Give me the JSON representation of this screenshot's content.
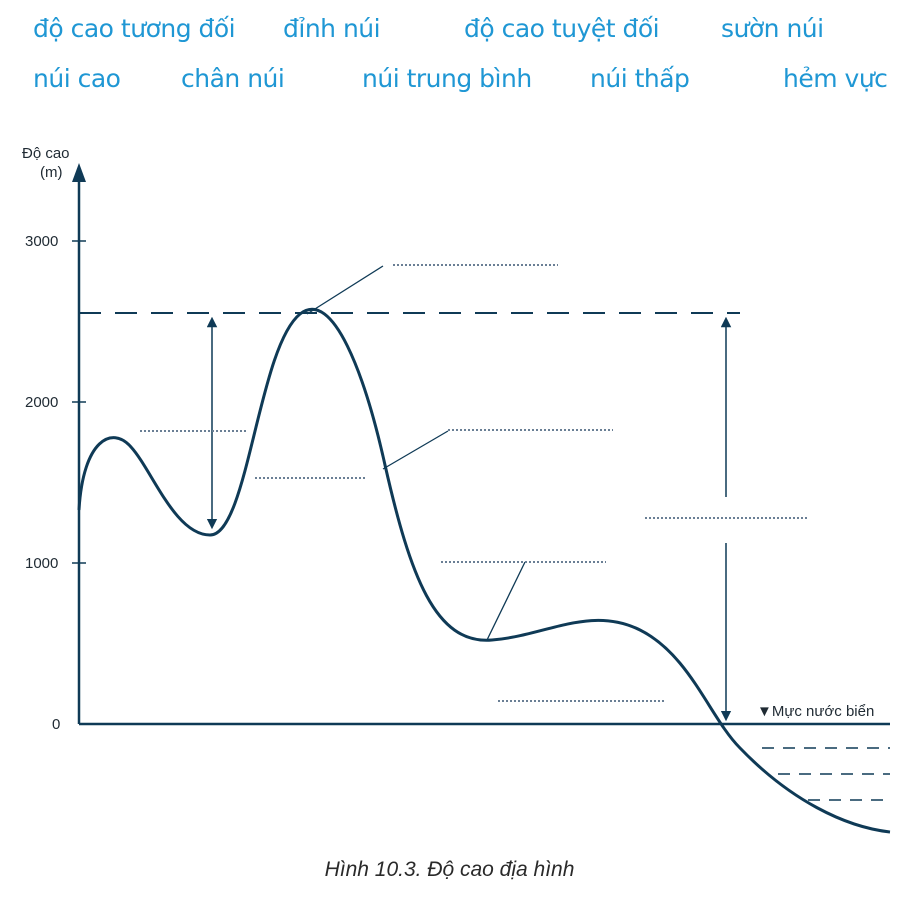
{
  "word_bank": [
    "độ cao tương đối",
    "đỉnh núi",
    "độ cao tuyệt đối",
    "sườn núi",
    "núi cao",
    "chân núi",
    "núi trung bình",
    "núi thấp",
    "hẻm vực"
  ],
  "diagram": {
    "y_axis_title_line1": "Độ cao",
    "y_axis_title_line2": "(m)",
    "y_ticks": [
      "3000",
      "2000",
      "1000",
      "0"
    ],
    "sea_level_label": "▼Mực nước biển"
  },
  "caption": "Hình 10.3. Độ cao địa hình",
  "colors": {
    "word_bank": "#1f97d4",
    "lines": "#0f3a56",
    "dotted": "#6a7f95"
  }
}
